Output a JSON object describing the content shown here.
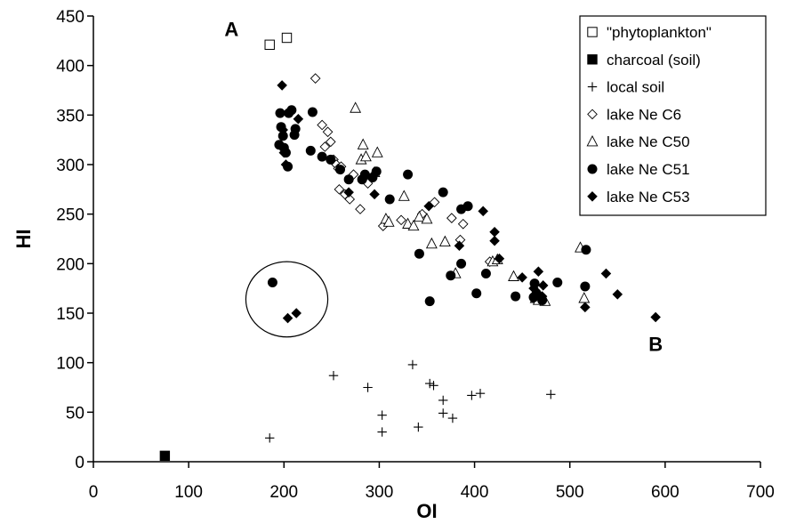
{
  "chart_data": {
    "type": "scatter",
    "title": "",
    "xlabel": "OI",
    "ylabel": "HI",
    "xlim": [
      0,
      700
    ],
    "ylim": [
      0,
      450
    ],
    "x_ticks": [
      "0",
      "100",
      "200",
      "300",
      "400",
      "500",
      "600",
      "700"
    ],
    "y_ticks": [
      "0",
      "50",
      "100",
      "150",
      "200",
      "250",
      "300",
      "350",
      "400",
      "450"
    ],
    "grid": false,
    "legend_position": "top-right",
    "annotations": [
      {
        "text": "A",
        "x": 145,
        "y": 430
      },
      {
        "text": "B",
        "x": 590,
        "y": 112
      }
    ],
    "circled_region": {
      "center_x": 203,
      "center_y": 164,
      "radius_x": 43,
      "radius_y": 38
    },
    "series": [
      {
        "name": "\"phytoplankton\"",
        "marker": "open-square",
        "points": [
          [
            185,
            421
          ],
          [
            203,
            428
          ]
        ]
      },
      {
        "name": "charcoal (soil)",
        "marker": "filled-square",
        "points": [
          [
            75,
            6
          ]
        ]
      },
      {
        "name": "local soil",
        "marker": "plus",
        "points": [
          [
            185,
            24
          ],
          [
            252,
            87
          ],
          [
            288,
            75
          ],
          [
            303,
            47
          ],
          [
            303,
            30
          ],
          [
            335,
            98
          ],
          [
            341,
            35
          ],
          [
            353,
            79
          ],
          [
            357,
            77
          ],
          [
            367,
            62
          ],
          [
            367,
            49
          ],
          [
            377,
            44
          ],
          [
            397,
            67
          ],
          [
            406,
            69
          ],
          [
            480,
            68
          ]
        ]
      },
      {
        "name": "lake Ne C6",
        "marker": "open-diamond",
        "points": [
          [
            233,
            387
          ],
          [
            240,
            340
          ],
          [
            243,
            318
          ],
          [
            246,
            333
          ],
          [
            249,
            323
          ],
          [
            252,
            305
          ],
          [
            255,
            300
          ],
          [
            257,
            296
          ],
          [
            258,
            275
          ],
          [
            260,
            298
          ],
          [
            264,
            270
          ],
          [
            269,
            265
          ],
          [
            273,
            290
          ],
          [
            280,
            255
          ],
          [
            288,
            281
          ],
          [
            304,
            238
          ],
          [
            308,
            242
          ],
          [
            323,
            244
          ],
          [
            345,
            250
          ],
          [
            358,
            262
          ],
          [
            376,
            246
          ],
          [
            385,
            224
          ],
          [
            388,
            240
          ],
          [
            416,
            202
          ]
        ]
      },
      {
        "name": "lake Ne C50",
        "marker": "open-triangle",
        "points": [
          [
            275,
            357
          ],
          [
            281,
            305
          ],
          [
            283,
            320
          ],
          [
            286,
            308
          ],
          [
            295,
            292
          ],
          [
            298,
            312
          ],
          [
            307,
            245
          ],
          [
            310,
            242
          ],
          [
            326,
            268
          ],
          [
            330,
            240
          ],
          [
            336,
            238
          ],
          [
            342,
            247
          ],
          [
            350,
            245
          ],
          [
            355,
            220
          ],
          [
            369,
            222
          ],
          [
            380,
            190
          ],
          [
            419,
            202
          ],
          [
            424,
            204
          ],
          [
            441,
            187
          ],
          [
            464,
            165
          ],
          [
            467,
            163
          ],
          [
            474,
            162
          ],
          [
            511,
            216
          ],
          [
            515,
            165
          ]
        ]
      },
      {
        "name": "lake Ne C51",
        "marker": "filled-circle",
        "points": [
          [
            188,
            181
          ],
          [
            195,
            320
          ],
          [
            196,
            352
          ],
          [
            197,
            338
          ],
          [
            199,
            329
          ],
          [
            200,
            317
          ],
          [
            202,
            312
          ],
          [
            204,
            298
          ],
          [
            205,
            352
          ],
          [
            208,
            355
          ],
          [
            211,
            330
          ],
          [
            212,
            336
          ],
          [
            228,
            314
          ],
          [
            230,
            353
          ],
          [
            240,
            308
          ],
          [
            249,
            305
          ],
          [
            259,
            295
          ],
          [
            268,
            285
          ],
          [
            282,
            285
          ],
          [
            285,
            290
          ],
          [
            293,
            287
          ],
          [
            297,
            293
          ],
          [
            311,
            265
          ],
          [
            330,
            290
          ],
          [
            342,
            210
          ],
          [
            353,
            162
          ],
          [
            367,
            272
          ],
          [
            375,
            188
          ],
          [
            386,
            200
          ],
          [
            386,
            255
          ],
          [
            393,
            258
          ],
          [
            402,
            170
          ],
          [
            412,
            190
          ],
          [
            443,
            167
          ],
          [
            462,
            166
          ],
          [
            463,
            180
          ],
          [
            465,
            170
          ],
          [
            471,
            163
          ],
          [
            487,
            181
          ],
          [
            516,
            177
          ],
          [
            517,
            214
          ]
        ]
      },
      {
        "name": "lake Ne C53",
        "marker": "filled-diamond",
        "points": [
          [
            198,
            380
          ],
          [
            199,
            335
          ],
          [
            200,
            312
          ],
          [
            202,
            300
          ],
          [
            204,
            145
          ],
          [
            213,
            150
          ],
          [
            215,
            346
          ],
          [
            268,
            272
          ],
          [
            295,
            270
          ],
          [
            352,
            258
          ],
          [
            384,
            218
          ],
          [
            409,
            253
          ],
          [
            421,
            232
          ],
          [
            421,
            223
          ],
          [
            426,
            205
          ],
          [
            450,
            186
          ],
          [
            462,
            175
          ],
          [
            467,
            192
          ],
          [
            471,
            167
          ],
          [
            472,
            178
          ],
          [
            516,
            156
          ],
          [
            538,
            190
          ],
          [
            550,
            169
          ],
          [
            590,
            146
          ]
        ]
      }
    ]
  }
}
